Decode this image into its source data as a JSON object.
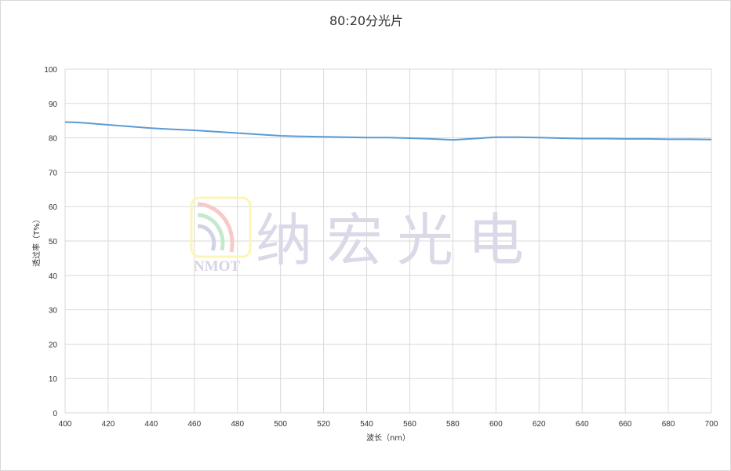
{
  "chart_data": {
    "type": "line",
    "title": "80:20分光片",
    "xlabel": "波长（nm）",
    "ylabel": "透过率（T%）",
    "xlim": [
      400,
      700
    ],
    "ylim": [
      0,
      100
    ],
    "xticks": [
      400,
      420,
      440,
      460,
      480,
      500,
      520,
      540,
      560,
      580,
      600,
      620,
      640,
      660,
      680,
      700
    ],
    "yticks": [
      0,
      10,
      20,
      30,
      40,
      50,
      60,
      70,
      80,
      90,
      100
    ],
    "grid": true,
    "series": [
      {
        "color": "#5b9bd5",
        "x": [
          400,
          405,
          410,
          420,
          430,
          440,
          450,
          460,
          470,
          480,
          490,
          500,
          510,
          520,
          530,
          540,
          550,
          560,
          570,
          580,
          590,
          600,
          610,
          620,
          630,
          640,
          650,
          660,
          670,
          680,
          690,
          700
        ],
        "y": [
          84.6,
          84.5,
          84.3,
          83.8,
          83.3,
          82.8,
          82.5,
          82.2,
          81.8,
          81.4,
          81.0,
          80.6,
          80.4,
          80.3,
          80.2,
          80.1,
          80.1,
          79.9,
          79.7,
          79.4,
          79.8,
          80.2,
          80.2,
          80.1,
          79.9,
          79.8,
          79.8,
          79.7,
          79.7,
          79.6,
          79.6,
          79.5
        ]
      }
    ]
  },
  "watermark": {
    "logo_text": "NMOT",
    "company": "纳宏光电"
  }
}
